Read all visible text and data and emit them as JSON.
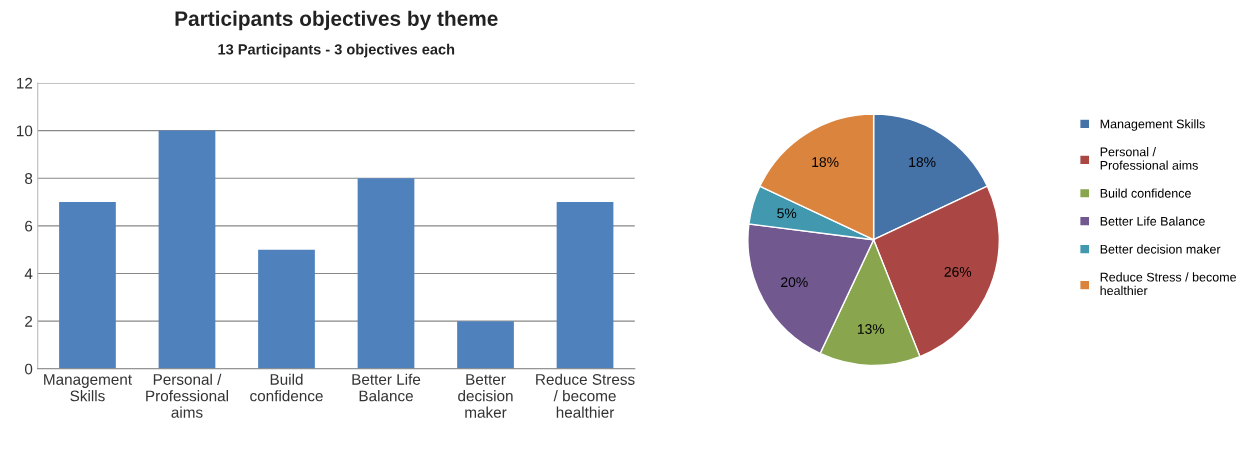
{
  "chart_data": [
    {
      "type": "bar",
      "title": "Participants objectives by theme",
      "subtitle": "13 Participants - 3 objectives each",
      "categories": [
        "Management Skills",
        "Personal / Professional aims",
        "Build confidence",
        "Better Life Balance",
        "Better decision maker",
        "Reduce Stress / become healthier"
      ],
      "values": [
        7,
        10,
        5,
        8,
        2,
        7
      ],
      "color": "#4f81bd",
      "ylim": [
        0,
        12
      ],
      "yticks": [
        0,
        2,
        4,
        6,
        8,
        10,
        12
      ],
      "grid": "y",
      "legend": false
    },
    {
      "type": "pie",
      "categories": [
        "Management Skills",
        "Personal / Professional aims",
        "Build confidence",
        "Better Life Balance",
        "Better decision maker",
        "Reduce Stress / become healthier"
      ],
      "values": [
        18,
        26,
        13,
        20,
        5,
        18
      ],
      "colors": [
        "#4572a7",
        "#aa4643",
        "#89a54e",
        "#71588f",
        "#4198af",
        "#db843d"
      ],
      "value_labels": [
        "18%",
        "26%",
        "13%",
        "20%",
        "5%",
        "18%"
      ],
      "legend": "right"
    }
  ]
}
